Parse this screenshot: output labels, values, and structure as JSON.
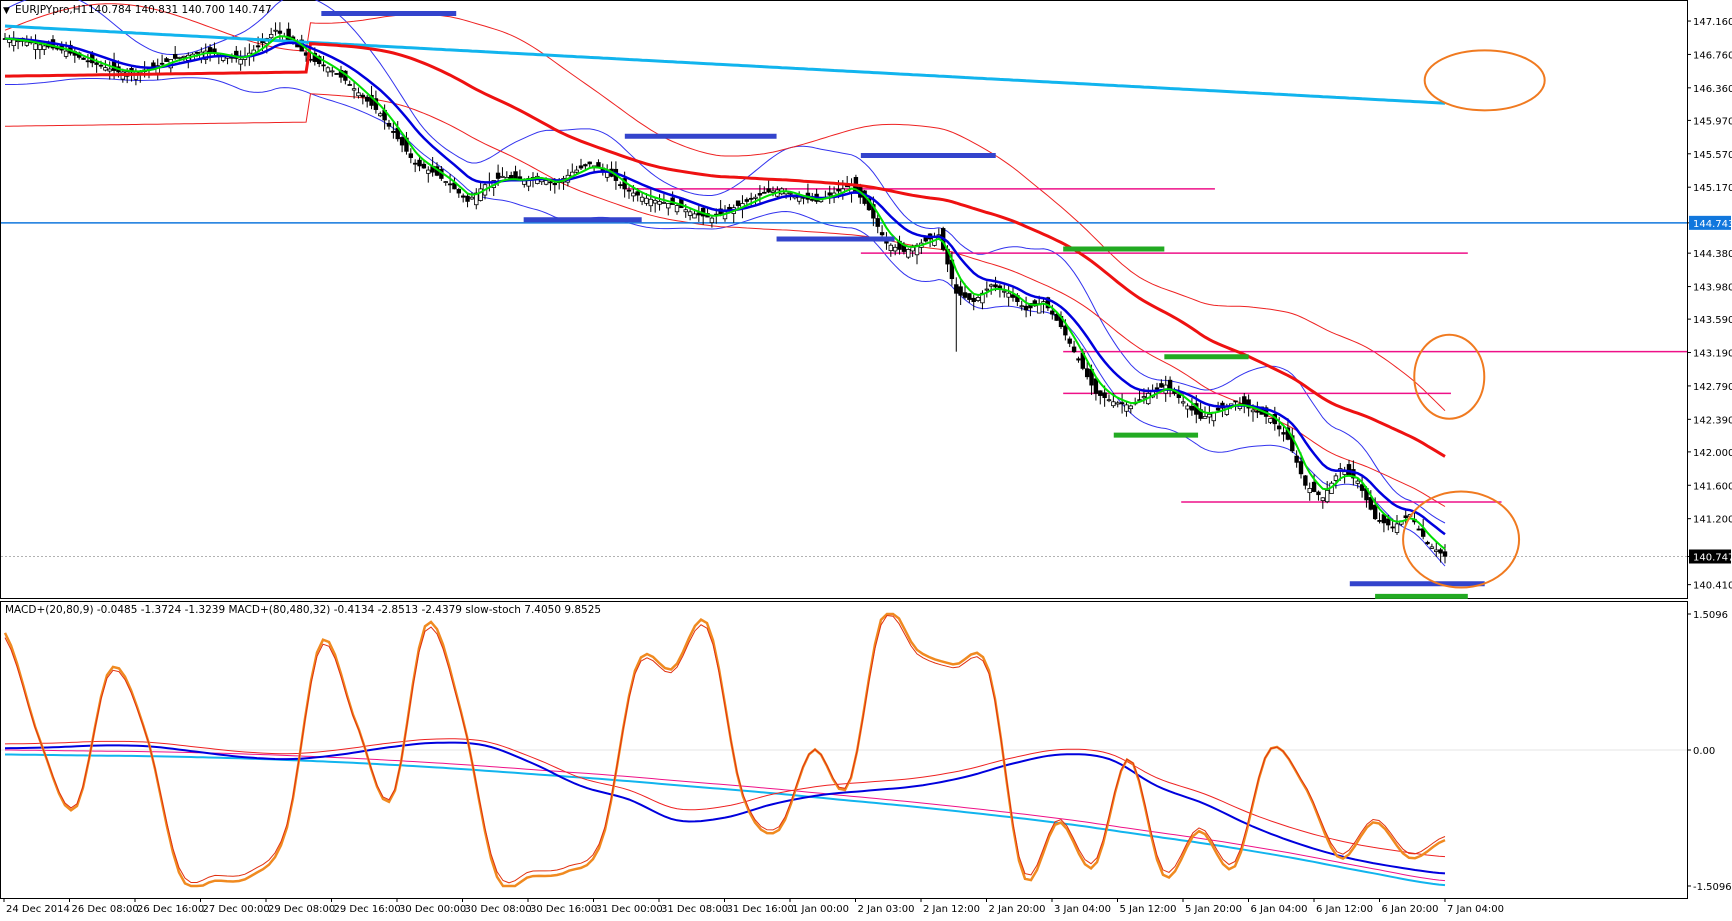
{
  "header": {
    "symbol_label": "EURJPYpro,H1",
    "ohlc_text": "140.784 140.831 140.700 140.747"
  },
  "indicator_header": {
    "text": "MACD+(20,80,9) -0.0485 -1.3724 -1.3239  MACD+(80,480,32) -0.4134 -2.8513 -2.4379  slow-stoch 7.4050 9.8525"
  },
  "colors": {
    "bull_candle": "#ffffff",
    "bear_candle": "#000000",
    "ema_fast_green": "#00e000",
    "ema_mid_blue": "#0000dd",
    "ma_slow_red": "#ee1111",
    "ma_long_cyan": "#11b4ee",
    "bollinger_blue": "#3333ee",
    "bollinger_red": "#ee2222",
    "level_magenta": "#ee1188",
    "mark_blue": "#3344cc",
    "mark_green": "#22aa22",
    "circle_orange": "#f07a20",
    "stoch_orange": "#f08a20",
    "axis_price_tag": "#1177dd"
  },
  "chart_data": [
    {
      "type": "candlestick",
      "title": "EURJPYpro,H1",
      "ylim": [
        140.25,
        147.4
      ],
      "y_ticks": [
        "147.160",
        "146.760",
        "146.360",
        "145.970",
        "145.570",
        "145.170",
        "144.743",
        "144.380",
        "143.980",
        "143.590",
        "143.190",
        "142.790",
        "142.390",
        "142.000",
        "141.600",
        "141.200",
        "140.747",
        "140.410"
      ],
      "current_price": "140.747",
      "horizontal_line": "144.743",
      "x_tick_labels": [
        "24 Dec 2014",
        "26 Dec 08:00",
        "26 Dec 16:00",
        "27 Dec 00:00",
        "29 Dec 08:00",
        "29 Dec 16:00",
        "30 Dec 00:00",
        "30 Dec 08:00",
        "30 Dec 16:00",
        "31 Dec 00:00",
        "31 Dec 08:00",
        "31 Dec 16:00",
        "1 Jan 00:00",
        "2 Jan 03:00",
        "2 Jan 12:00",
        "2 Jan 20:00",
        "3 Jan 04:00",
        "5 Jan 12:00",
        "5 Jan 20:00",
        "6 Jan 04:00",
        "6 Jan 12:00",
        "6 Jan 20:00",
        "7 Jan 04:00"
      ],
      "approx_close_path": [
        [
          0,
          146.95
        ],
        [
          6,
          146.9
        ],
        [
          10,
          146.85
        ],
        [
          14,
          146.8
        ],
        [
          18,
          146.7
        ],
        [
          22,
          146.62
        ],
        [
          26,
          146.55
        ],
        [
          30,
          146.55
        ],
        [
          34,
          146.6
        ],
        [
          38,
          146.7
        ],
        [
          42,
          146.75
        ],
        [
          46,
          146.8
        ],
        [
          50,
          146.75
        ],
        [
          54,
          146.7
        ],
        [
          58,
          146.85
        ],
        [
          62,
          147.05
        ],
        [
          66,
          146.9
        ],
        [
          70,
          146.7
        ],
        [
          74,
          146.6
        ],
        [
          78,
          146.45
        ],
        [
          82,
          146.25
        ],
        [
          86,
          146.05
        ],
        [
          90,
          145.75
        ],
        [
          94,
          145.45
        ],
        [
          98,
          145.35
        ],
        [
          102,
          145.2
        ],
        [
          106,
          145.0
        ],
        [
          110,
          145.2
        ],
        [
          114,
          145.3
        ],
        [
          118,
          145.25
        ],
        [
          122,
          145.3
        ],
        [
          126,
          145.2
        ],
        [
          130,
          145.35
        ],
        [
          134,
          145.45
        ],
        [
          138,
          145.35
        ],
        [
          142,
          145.15
        ],
        [
          146,
          145.05
        ],
        [
          150,
          145.0
        ],
        [
          154,
          144.95
        ],
        [
          158,
          144.85
        ],
        [
          162,
          144.8
        ],
        [
          166,
          144.9
        ],
        [
          170,
          145.0
        ],
        [
          174,
          145.1
        ],
        [
          178,
          145.15
        ],
        [
          182,
          145.05
        ],
        [
          186,
          145.0
        ],
        [
          190,
          145.1
        ],
        [
          194,
          145.2
        ],
        [
          198,
          144.9
        ],
        [
          202,
          144.5
        ],
        [
          206,
          144.4
        ],
        [
          210,
          144.5
        ],
        [
          214,
          144.6
        ],
        [
          218,
          143.9
        ],
        [
          222,
          143.8
        ],
        [
          226,
          144.0
        ],
        [
          230,
          143.9
        ],
        [
          234,
          143.7
        ],
        [
          238,
          143.8
        ],
        [
          242,
          143.5
        ],
        [
          246,
          143.1
        ],
        [
          250,
          142.7
        ],
        [
          254,
          142.6
        ],
        [
          258,
          142.55
        ],
        [
          262,
          142.7
        ],
        [
          266,
          142.8
        ],
        [
          270,
          142.6
        ],
        [
          274,
          142.4
        ],
        [
          278,
          142.5
        ],
        [
          282,
          142.6
        ],
        [
          286,
          142.5
        ],
        [
          290,
          142.4
        ],
        [
          294,
          142.15
        ],
        [
          298,
          141.6
        ],
        [
          302,
          141.45
        ],
        [
          306,
          141.8
        ],
        [
          310,
          141.65
        ],
        [
          314,
          141.2
        ],
        [
          318,
          141.1
        ],
        [
          322,
          141.25
        ],
        [
          326,
          140.9
        ],
        [
          330,
          140.75
        ]
      ],
      "indicators": [
        {
          "name": "EMA fast",
          "color": "green"
        },
        {
          "name": "EMA mid",
          "color": "blue"
        },
        {
          "name": "MA slow",
          "color": "red"
        },
        {
          "name": "MA long",
          "color": "cyan"
        },
        {
          "name": "Bollinger upper/lower",
          "color": "blue/red"
        }
      ],
      "support_resistance_levels": [
        145.15,
        144.38,
        143.2,
        142.7,
        141.4
      ],
      "annotations": "blue and green horizontal marker bars at swing highs/lows; three orange circles on the right"
    },
    {
      "type": "line",
      "title": "MACD+(20,80,9) / MACD+(80,480,32) / slow-stoch",
      "ylim": [
        -1.5096,
        1.5096
      ],
      "y_ticks": [
        "1.5096",
        "0.00",
        "-1.5096"
      ],
      "series": [
        {
          "name": "slow-stoch",
          "values": [
            1.3,
            0.1,
            -0.65,
            0.9,
            0.2,
            -1.4,
            -1.45,
            -1.4,
            -0.9,
            1.2,
            0.3,
            -0.55,
            1.4,
            0.4,
            -1.4,
            -1.4,
            -1.35,
            -1.0,
            0.95,
            0.9,
            1.4,
            -0.5,
            -0.9,
            0.0,
            -0.4,
            1.5,
            1.1,
            0.95,
            0.9,
            -1.4,
            -0.8,
            -1.3,
            -0.1,
            -1.4,
            -0.9,
            -1.3,
            0.0,
            -0.4,
            -1.2,
            -0.8,
            -1.2,
            -1.0
          ]
        },
        {
          "name": "MACD+(20,80,9)",
          "values": [
            0.02,
            0.03,
            0.05,
            0.04,
            -0.02,
            -0.08,
            -0.1,
            -0.05,
            0.03,
            0.08,
            0.05,
            -0.15,
            -0.4,
            -0.55,
            -0.78,
            -0.75,
            -0.6,
            -0.5,
            -0.45,
            -0.4,
            -0.3,
            -0.15,
            -0.05,
            -0.1,
            -0.4,
            -0.6,
            -0.85,
            -1.05,
            -1.2,
            -1.3,
            -1.37
          ]
        },
        {
          "name": "MACD+(80,480,32)",
          "values": [
            -0.05,
            -0.06,
            -0.07,
            -0.09,
            -0.12,
            -0.16,
            -0.21,
            -0.27,
            -0.33,
            -0.4,
            -0.47,
            -0.55,
            -0.63,
            -0.72,
            -0.82,
            -0.94,
            -1.06,
            -1.2,
            -1.36,
            -1.5
          ]
        }
      ]
    }
  ]
}
